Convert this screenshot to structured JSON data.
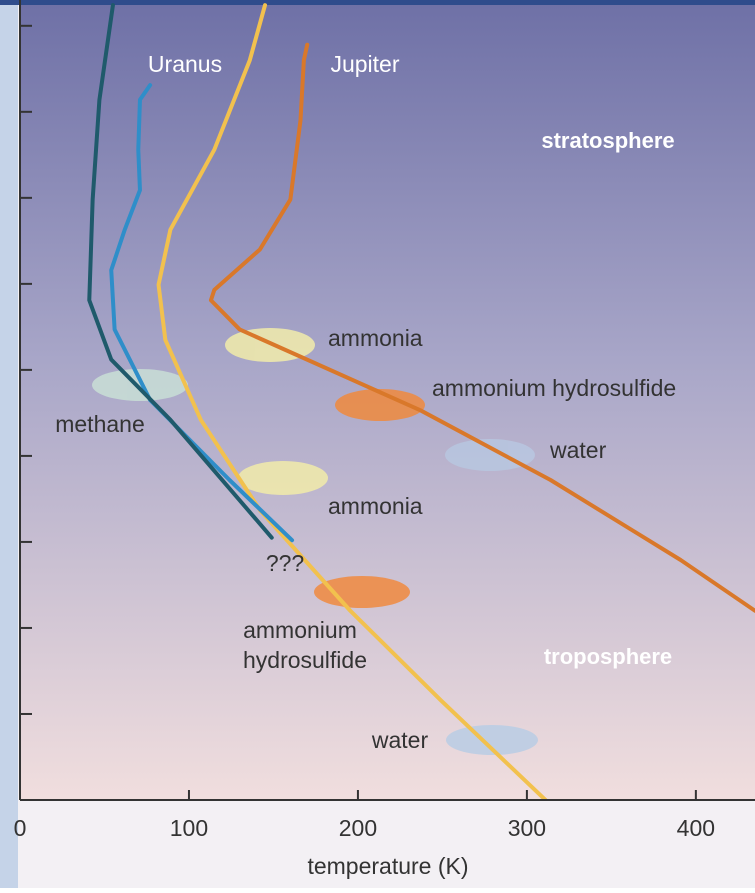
{
  "chart_data": {
    "type": "line",
    "x_label": "temperature (K)",
    "xlim": [
      0,
      435
    ],
    "xticks": [
      0,
      100,
      200,
      300,
      400
    ],
    "ylim": [
      0,
      9.3
    ],
    "yticks": [
      1,
      2,
      3,
      4,
      5,
      6,
      7,
      8,
      9
    ],
    "series": [
      {
        "name": "Jupiter",
        "color": "#d9782a",
        "x": [
          170,
          168,
          166,
          160,
          142,
          115,
          113,
          130,
          237,
          314,
          391,
          435
        ],
        "values": [
          8.78,
          8.6,
          7.9,
          6.98,
          6.4,
          5.93,
          5.81,
          5.47,
          4.53,
          3.72,
          2.79,
          2.2
        ]
      },
      {
        "color": "#f2c14e",
        "x": [
          145,
          136,
          115,
          89,
          82,
          86,
          107,
          142,
          195,
          249,
          311
        ],
        "values": [
          9.24,
          8.6,
          7.56,
          6.63,
          5.99,
          5.35,
          4.42,
          3.37,
          2.21,
          1.16,
          0
        ]
      },
      {
        "name": "Uranus",
        "color": "#2f8ec9",
        "x": [
          77,
          71,
          70,
          71,
          62,
          54,
          56,
          77,
          124,
          161
        ],
        "values": [
          8.31,
          8.14,
          7.56,
          7.09,
          6.63,
          6.16,
          5.47,
          4.65,
          3.72,
          3.02
        ]
      },
      {
        "color": "#1f5a6b",
        "x": [
          55,
          47,
          43,
          41,
          54,
          89,
          149
        ],
        "values": [
          9.24,
          8.14,
          6.98,
          5.81,
          5.12,
          4.42,
          3.05
        ]
      }
    ],
    "annotations": [
      "stratosphere",
      "troposphere",
      "methane",
      "ammonia",
      "ammonium hydrosulfide",
      "water",
      "ammonia",
      "???",
      "ammonium",
      "hydrosulfide",
      "water"
    ]
  }
}
